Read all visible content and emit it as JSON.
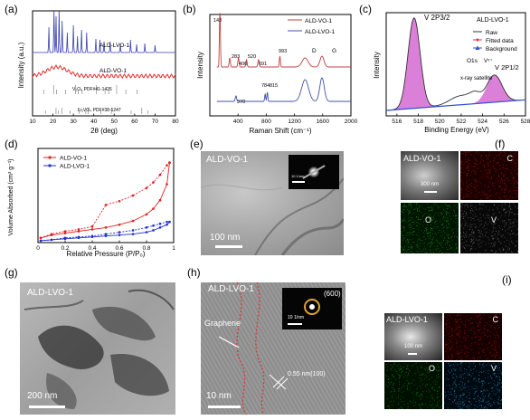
{
  "labels": {
    "a": "(a)",
    "b": "(b)",
    "c": "(c)",
    "d": "(d)",
    "e": "(e)",
    "f": "(f)",
    "g": "(g)",
    "h": "(h)",
    "i": "(i)"
  },
  "chart_data": [
    {
      "type": "line",
      "panel": "a",
      "xlabel": "2θ (deg)",
      "ylabel": "Intensity (a.u.)",
      "xlim": [
        10,
        80
      ],
      "x_ticks": [
        10,
        20,
        30,
        40,
        50,
        60,
        70,
        80
      ],
      "series": [
        {
          "name": "ALD-LVO-1",
          "color": "#3a3fb0"
        },
        {
          "name": "ALD-VO-1",
          "color": "#e03030"
        }
      ],
      "reference_labels": [
        "V₂O₅ PDF#41-1426",
        "Li₃VO₄ PDF#38-1247"
      ],
      "grid": false
    },
    {
      "type": "line",
      "panel": "b",
      "xlabel": "Raman Shift (cm⁻¹)",
      "ylabel": "Intensity",
      "xlim": [
        0,
        2000
      ],
      "x_ticks": [
        400,
        800,
        1200,
        1600,
        2000
      ],
      "series": [
        {
          "name": "ALD-VO-1",
          "color": "#c04040"
        },
        {
          "name": "ALD-LVO-1",
          "color": "#4050b0"
        }
      ],
      "peak_labels": [
        "143",
        "283",
        "406",
        "520",
        "691",
        "993",
        "370",
        "784",
        "815",
        "D",
        "G"
      ],
      "grid": false
    },
    {
      "type": "line",
      "panel": "c",
      "title": "ALD-LVO-1",
      "xlabel": "Binding Energy (eV)",
      "ylabel": "Intensity",
      "xlim": [
        515,
        528
      ],
      "x_ticks": [
        516,
        518,
        520,
        522,
        524,
        526,
        528
      ],
      "series": [
        {
          "name": "Raw",
          "color": "#333333"
        },
        {
          "name": "Fitted data",
          "color": "#e03050"
        },
        {
          "name": "Background",
          "color": "#3050d0"
        }
      ],
      "annotations": [
        "V 2P3/2",
        "O1s",
        "V⁵⁺",
        "V 2P1/2",
        "x-ray satellite"
      ],
      "grid": false
    },
    {
      "type": "line",
      "panel": "d",
      "xlabel": "Relative Pressure (P/P₀)",
      "ylabel": "Volume Absorbed (cm³ g⁻¹)",
      "xlim": [
        0,
        1.0
      ],
      "x_ticks": [
        0.0,
        0.2,
        0.4,
        0.6,
        0.8,
        1.0
      ],
      "series": [
        {
          "name": "ALD-VO-1",
          "color": "#e02020",
          "x": [
            0.02,
            0.1,
            0.2,
            0.3,
            0.4,
            0.5,
            0.6,
            0.7,
            0.8,
            0.85,
            0.9,
            0.95,
            0.97
          ],
          "adsorption": [
            0.05,
            0.08,
            0.1,
            0.12,
            0.14,
            0.16,
            0.19,
            0.23,
            0.3,
            0.36,
            0.45,
            0.62,
            0.85
          ],
          "desorption": [
            0.05,
            0.09,
            0.12,
            0.14,
            0.17,
            0.4,
            0.44,
            0.5,
            0.58,
            0.64,
            0.72,
            0.82,
            0.85
          ]
        },
        {
          "name": "ALD-LVO-1",
          "color": "#2030d0",
          "x": [
            0.02,
            0.1,
            0.2,
            0.3,
            0.4,
            0.5,
            0.6,
            0.7,
            0.8,
            0.85,
            0.9,
            0.95,
            0.97
          ],
          "adsorption": [
            0.02,
            0.03,
            0.04,
            0.05,
            0.06,
            0.07,
            0.08,
            0.09,
            0.11,
            0.13,
            0.16,
            0.19,
            0.22
          ],
          "desorption": [
            0.02,
            0.03,
            0.05,
            0.06,
            0.07,
            0.09,
            0.11,
            0.13,
            0.16,
            0.18,
            0.2,
            0.22,
            0.22
          ]
        }
      ],
      "grid": false
    }
  ],
  "e": {
    "sample": "ALD-VO-1",
    "scale": "100 nm",
    "inset_scale": "10 1/nm"
  },
  "f": {
    "sample": "ALD-VO-1",
    "scale": "300 nm",
    "maps": [
      "C",
      "O",
      "V"
    ]
  },
  "g": {
    "sample": "ALD-LVO-1",
    "scale": "200 nm"
  },
  "h": {
    "sample": "ALD-LVO-1",
    "inset_index": "(600)",
    "graphene": "Graphene",
    "lattice": "0.55 nm(100)",
    "scale": "10 nm",
    "inset_scale": "10 1/nm"
  },
  "i": {
    "sample": "ALD-LVO-1",
    "scale": "100 nm",
    "maps": [
      "C",
      "O",
      "V"
    ]
  },
  "colors": {
    "map_c": "#b01010",
    "map_o": "#1a8a1a",
    "map_v": "#2090c0"
  }
}
